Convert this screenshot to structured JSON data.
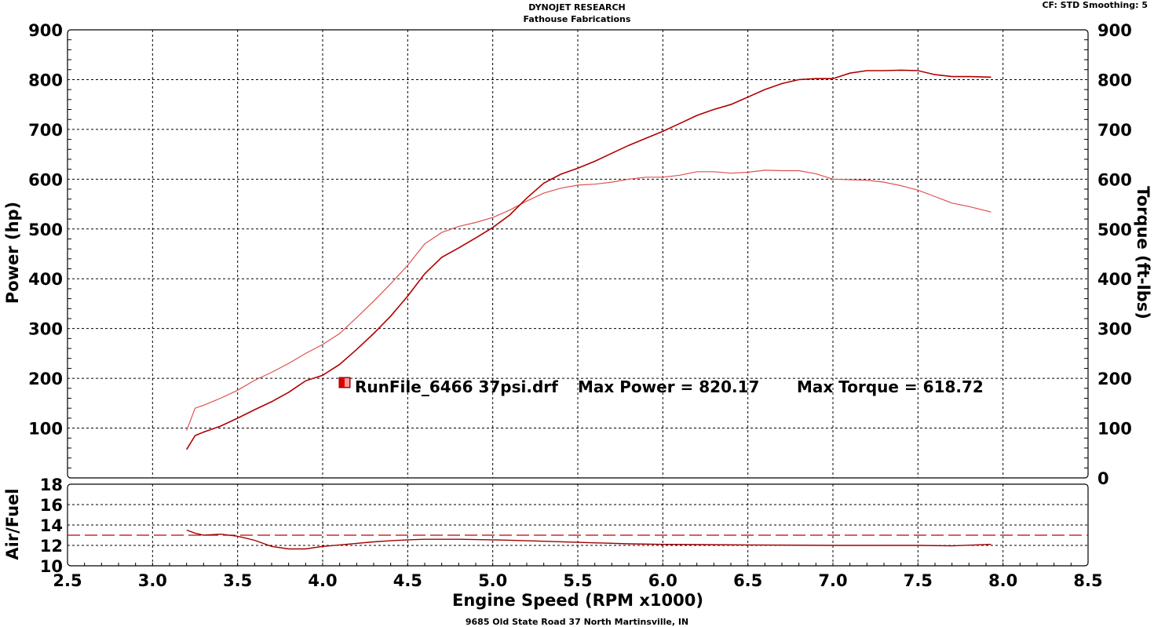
{
  "header": {
    "line1": "DYNOJET RESEARCH",
    "line2": "Fathouse Fabrications",
    "settings": "CF: STD  Smoothing: 5"
  },
  "footer": "9685 Old State Road 37 North Martinsville, IN",
  "colors": {
    "power": "#b00000",
    "torque": "#e05050",
    "afr_target": "#c00000",
    "afr": "#a00000",
    "legend_swatch": "#dd0000"
  },
  "chart_data": [
    {
      "type": "line",
      "title": "",
      "xlabel": "Engine Speed (RPM x1000)",
      "ylabel": "Power (hp)",
      "y2label": "Torque (ft-lbs)",
      "xlim": [
        2.5,
        8.5
      ],
      "ylim": [
        0,
        900
      ],
      "y2lim": [
        0,
        900
      ],
      "grid": true,
      "x_ticks": [
        "2.5",
        "3.0",
        "3.5",
        "4.0",
        "4.5",
        "5.0",
        "5.5",
        "6.0",
        "6.5",
        "7.0",
        "7.5",
        "8.0",
        "8.5"
      ],
      "y_ticks": [
        "100",
        "200",
        "300",
        "400",
        "500",
        "600",
        "700",
        "800",
        "900"
      ],
      "y2_ticks": [
        "0",
        "100",
        "200",
        "300",
        "400",
        "500",
        "600",
        "700",
        "800",
        "900"
      ],
      "legend": {
        "run": "RunFile_6466 37psi.drf",
        "max_power": "Max Power = 820.17",
        "max_torque": "Max Torque = 618.72"
      },
      "series": [
        {
          "axis": "left",
          "x": [
            3.2,
            3.25,
            3.3,
            3.4,
            3.5,
            3.6,
            3.7,
            3.8,
            3.9,
            4.0,
            4.1,
            4.2,
            4.3,
            4.4,
            4.5,
            4.6,
            4.7,
            4.8,
            4.9,
            5.0,
            5.1,
            5.2,
            5.3,
            5.4,
            5.5,
            5.6,
            5.7,
            5.8,
            5.9,
            6.0,
            6.1,
            6.2,
            6.3,
            6.4,
            6.5,
            6.6,
            6.7,
            6.8,
            6.9,
            7.0,
            7.1,
            7.2,
            7.3,
            7.4,
            7.5,
            7.6,
            7.7,
            7.8,
            7.93
          ],
          "values": [
            57,
            85,
            92,
            104,
            120,
            137,
            153,
            172,
            195,
            206,
            228,
            258,
            290,
            325,
            365,
            410,
            443,
            462,
            482,
            503,
            528,
            562,
            592,
            610,
            622,
            636,
            652,
            668,
            682,
            696,
            712,
            728,
            740,
            750,
            765,
            780,
            792,
            800,
            802,
            802,
            813,
            818,
            818,
            819,
            818,
            810,
            806,
            806,
            805
          ]
        },
        {
          "axis": "right",
          "x": [
            3.2,
            3.25,
            3.3,
            3.4,
            3.5,
            3.6,
            3.7,
            3.8,
            3.9,
            4.0,
            4.1,
            4.2,
            4.3,
            4.4,
            4.5,
            4.6,
            4.7,
            4.8,
            4.9,
            5.0,
            5.1,
            5.2,
            5.3,
            5.4,
            5.5,
            5.6,
            5.7,
            5.8,
            5.9,
            6.0,
            6.1,
            6.2,
            6.3,
            6.4,
            6.5,
            6.6,
            6.7,
            6.8,
            6.9,
            7.0,
            7.1,
            7.2,
            7.3,
            7.4,
            7.5,
            7.6,
            7.7,
            7.8,
            7.93
          ],
          "values": [
            95,
            140,
            146,
            160,
            176,
            196,
            212,
            230,
            250,
            268,
            290,
            322,
            355,
            390,
            427,
            470,
            493,
            505,
            513,
            523,
            538,
            556,
            572,
            582,
            588,
            590,
            594,
            600,
            604,
            604,
            608,
            615,
            615,
            612,
            614,
            618,
            617,
            617,
            611,
            600,
            599,
            598,
            594,
            587,
            578,
            565,
            552,
            545,
            534
          ]
        }
      ]
    },
    {
      "type": "line",
      "title": "",
      "xlabel": "Engine Speed (RPM x1000)",
      "ylabel": "Air/Fuel",
      "xlim": [
        2.5,
        8.5
      ],
      "ylim": [
        10,
        18
      ],
      "grid": true,
      "y_ticks": [
        "10",
        "12",
        "14",
        "16",
        "18"
      ],
      "series": [
        {
          "style": "dashed",
          "x": [
            2.5,
            8.5
          ],
          "values": [
            13.0,
            13.0
          ]
        },
        {
          "x": [
            3.2,
            3.25,
            3.3,
            3.4,
            3.5,
            3.6,
            3.7,
            3.8,
            3.9,
            4.0,
            4.1,
            4.2,
            4.3,
            4.4,
            4.5,
            4.6,
            4.8,
            5.0,
            5.2,
            5.5,
            5.8,
            6.0,
            6.5,
            7.0,
            7.5,
            7.7,
            7.93
          ],
          "values": [
            13.5,
            13.2,
            13.0,
            13.1,
            12.9,
            12.5,
            11.9,
            11.65,
            11.65,
            11.9,
            12.05,
            12.2,
            12.35,
            12.45,
            12.55,
            12.6,
            12.6,
            12.55,
            12.45,
            12.3,
            12.15,
            12.1,
            12.05,
            12.0,
            12.0,
            11.95,
            12.1
          ]
        }
      ]
    }
  ]
}
